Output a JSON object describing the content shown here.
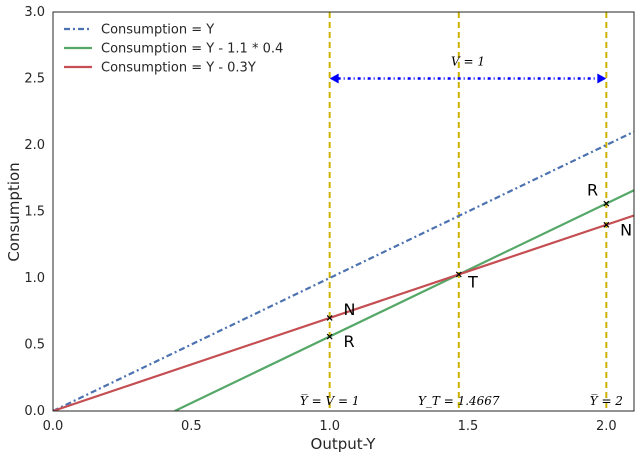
{
  "chart_data": {
    "type": "line",
    "xlabel": "Output-Y",
    "ylabel": "Consumption",
    "xlim": [
      0,
      2.1
    ],
    "ylim": [
      0,
      3.0
    ],
    "xticks": [
      "0.0",
      "0.5",
      "1.0",
      "1.5",
      "2.0"
    ],
    "xtick_values": [
      0,
      0.5,
      1.0,
      1.5,
      2.0
    ],
    "yticks": [
      "0.0",
      "0.5",
      "1.0",
      "1.5",
      "2.0",
      "2.5",
      "3.0"
    ],
    "ytick_values": [
      0,
      0.5,
      1.0,
      1.5,
      2.0,
      2.5,
      3.0
    ],
    "grid": false,
    "legend_position": "top-left",
    "series": [
      {
        "name": "Consumption = Y",
        "color": "#4c72b0",
        "style": "dashdot",
        "x": [
          0,
          2.1
        ],
        "y": [
          0,
          2.1
        ]
      },
      {
        "name": "Consumption = Y - 1.1 * 0.4",
        "color": "#55a868",
        "style": "solid",
        "x": [
          0.44,
          2.1
        ],
        "y": [
          0,
          1.66
        ]
      },
      {
        "name": "Consumption = Y - 0.3Y",
        "color": "#c44e52",
        "style": "solid",
        "x": [
          0,
          2.1
        ],
        "y": [
          0,
          1.47
        ]
      }
    ],
    "vlines": [
      {
        "x": 1.0,
        "label": "Y̅ = V = 1",
        "color": "#ccb200"
      },
      {
        "x": 1.4667,
        "label": "Y_T = 1.4667",
        "color": "#ccb200"
      },
      {
        "x": 2.0,
        "label": "Y̅ = 2",
        "color": "#ccb200"
      }
    ],
    "arrow": {
      "x1": 1.0,
      "x2": 2.0,
      "y": 2.5,
      "label": "V = 1",
      "color": "#0000ff"
    },
    "markers": [
      {
        "x": 1.0,
        "y": 0.7
      },
      {
        "x": 1.0,
        "y": 0.56
      },
      {
        "x": 1.4667,
        "y": 1.0267
      },
      {
        "x": 2.0,
        "y": 1.56
      },
      {
        "x": 2.0,
        "y": 1.4
      }
    ],
    "point_labels": [
      {
        "text": "N",
        "x": 1.05,
        "y": 0.72
      },
      {
        "text": "R",
        "x": 1.05,
        "y": 0.48
      },
      {
        "text": "T",
        "x": 1.5,
        "y": 0.93
      },
      {
        "text": "R",
        "x": 1.93,
        "y": 1.62
      },
      {
        "text": "N",
        "x": 2.05,
        "y": 1.32
      }
    ]
  }
}
